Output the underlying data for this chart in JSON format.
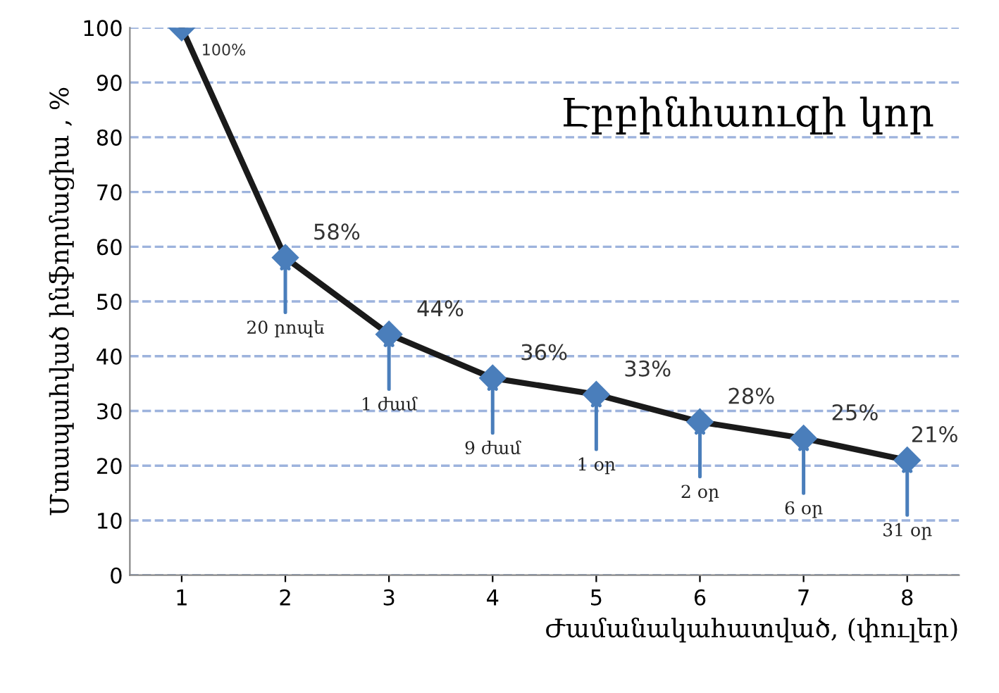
{
  "chart_data": {
    "type": "line",
    "title": "Էբբինհաուզի կոր",
    "xlabel": "Ժամանակահատված, (փուլեր)",
    "ylabel": "Մտապահված ինֆորմացիա , %",
    "categories": [
      "1",
      "2",
      "3",
      "4",
      "5",
      "6",
      "7",
      "8"
    ],
    "series": [
      {
        "color": "#1a1a1a",
        "values": [
          100,
          58,
          44,
          36,
          33,
          28,
          25,
          21
        ],
        "value_labels": [
          "100%",
          "58%",
          "44%",
          "36%",
          "33%",
          "28%",
          "25%",
          "21%"
        ]
      }
    ],
    "marker": "diamond",
    "line_style": "solid",
    "ylim": [
      0,
      100
    ],
    "yticks": [
      0,
      10,
      20,
      30,
      40,
      50,
      60,
      70,
      80,
      90,
      100
    ],
    "grid": "y",
    "legend": false,
    "annotations": [
      {
        "text": "20 րոպե",
        "x": "2",
        "y": 58
      },
      {
        "text": "1 ժամ",
        "x": "3",
        "y": 44
      },
      {
        "text": "9 ժամ",
        "x": "4",
        "y": 36
      },
      {
        "text": "1 օր",
        "x": "5",
        "y": 33
      },
      {
        "text": "2 օր",
        "x": "6",
        "y": 28
      },
      {
        "text": "6 օր",
        "x": "7",
        "y": 25
      },
      {
        "text": "31 օր",
        "x": "8",
        "y": 21
      }
    ]
  }
}
